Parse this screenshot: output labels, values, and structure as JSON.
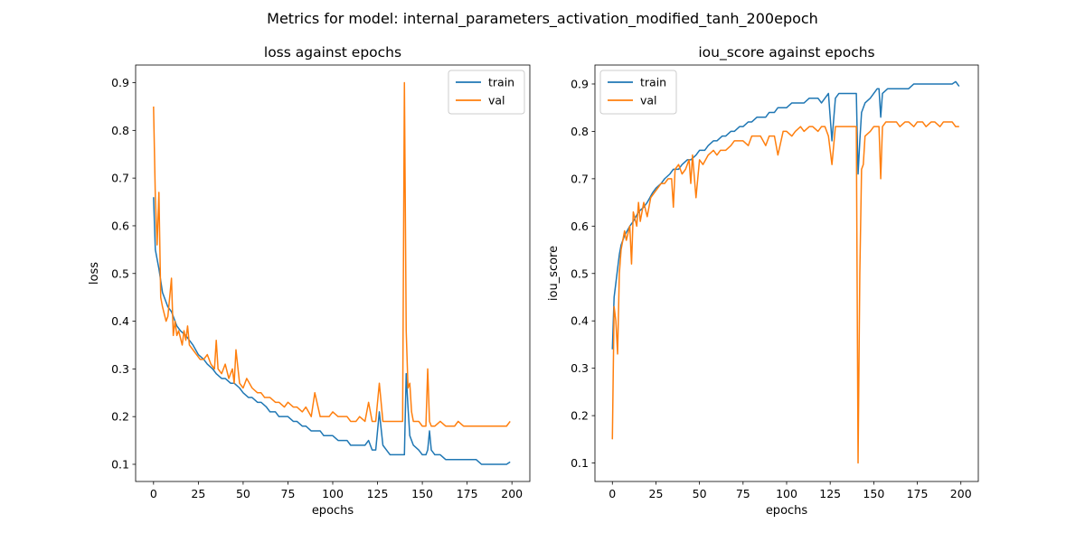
{
  "figure": {
    "suptitle": "Metrics for model: internal_parameters_activation_modified_tanh_200epoch"
  },
  "colors": {
    "train": "#1f77b4",
    "val": "#ff7f0e"
  },
  "chart_data": [
    {
      "type": "line",
      "title": "loss against epochs",
      "xlabel": "epochs",
      "ylabel": "loss",
      "xlim": [
        -10,
        210
      ],
      "ylim": [
        0.064,
        0.937
      ],
      "xticks": [
        0,
        25,
        50,
        75,
        100,
        125,
        150,
        175,
        200
      ],
      "yticks": [
        0.1,
        0.2,
        0.3,
        0.4,
        0.5,
        0.6,
        0.7,
        0.8,
        0.9
      ],
      "legend": "top-right",
      "grid": false,
      "series": [
        {
          "name": "train",
          "x": [
            0,
            1,
            3,
            5,
            8,
            10,
            13,
            15,
            18,
            20,
            22,
            25,
            28,
            30,
            33,
            35,
            38,
            40,
            43,
            45,
            48,
            50,
            53,
            55,
            58,
            60,
            63,
            65,
            68,
            70,
            73,
            75,
            78,
            80,
            83,
            85,
            88,
            90,
            93,
            95,
            98,
            100,
            103,
            105,
            108,
            110,
            113,
            115,
            118,
            120,
            122,
            124,
            126,
            128,
            130,
            132,
            134,
            136,
            138,
            139,
            140,
            141,
            142,
            143,
            145,
            148,
            150,
            152,
            153,
            154,
            155,
            157,
            160,
            163,
            165,
            168,
            170,
            173,
            175,
            178,
            180,
            183,
            185,
            188,
            190,
            193,
            195,
            197,
            199
          ],
          "values": [
            0.66,
            0.55,
            0.51,
            0.46,
            0.43,
            0.42,
            0.39,
            0.38,
            0.37,
            0.36,
            0.35,
            0.33,
            0.32,
            0.31,
            0.3,
            0.29,
            0.28,
            0.28,
            0.27,
            0.27,
            0.26,
            0.25,
            0.24,
            0.24,
            0.23,
            0.23,
            0.22,
            0.21,
            0.21,
            0.2,
            0.2,
            0.2,
            0.19,
            0.19,
            0.18,
            0.18,
            0.17,
            0.17,
            0.17,
            0.16,
            0.16,
            0.16,
            0.15,
            0.15,
            0.15,
            0.14,
            0.14,
            0.14,
            0.14,
            0.15,
            0.13,
            0.13,
            0.21,
            0.14,
            0.13,
            0.12,
            0.12,
            0.12,
            0.12,
            0.12,
            0.12,
            0.29,
            0.22,
            0.16,
            0.14,
            0.13,
            0.12,
            0.12,
            0.13,
            0.17,
            0.13,
            0.12,
            0.12,
            0.11,
            0.11,
            0.11,
            0.11,
            0.11,
            0.11,
            0.11,
            0.11,
            0.1,
            0.1,
            0.1,
            0.1,
            0.1,
            0.1,
            0.1,
            0.105
          ]
        },
        {
          "name": "val",
          "x": [
            0,
            1,
            2,
            3,
            4,
            5,
            7,
            8,
            10,
            11,
            12,
            13,
            14,
            16,
            17,
            18,
            19,
            20,
            22,
            24,
            26,
            28,
            30,
            32,
            34,
            35,
            36,
            38,
            40,
            42,
            44,
            45,
            46,
            48,
            50,
            52,
            55,
            58,
            60,
            62,
            65,
            68,
            70,
            73,
            75,
            78,
            80,
            83,
            85,
            88,
            90,
            93,
            95,
            98,
            100,
            103,
            105,
            108,
            110,
            113,
            115,
            118,
            120,
            122,
            124,
            126,
            128,
            130,
            132,
            134,
            136,
            138,
            139,
            140,
            141,
            142,
            143,
            144,
            145,
            148,
            150,
            152,
            153,
            154,
            155,
            157,
            160,
            163,
            165,
            168,
            170,
            173,
            175,
            178,
            180,
            183,
            185,
            188,
            190,
            193,
            195,
            197,
            199
          ],
          "values": [
            0.85,
            0.66,
            0.56,
            0.67,
            0.45,
            0.43,
            0.4,
            0.41,
            0.49,
            0.37,
            0.4,
            0.37,
            0.38,
            0.35,
            0.38,
            0.36,
            0.39,
            0.35,
            0.34,
            0.33,
            0.32,
            0.32,
            0.33,
            0.31,
            0.3,
            0.36,
            0.3,
            0.29,
            0.31,
            0.28,
            0.3,
            0.27,
            0.34,
            0.27,
            0.26,
            0.28,
            0.26,
            0.25,
            0.25,
            0.24,
            0.24,
            0.23,
            0.23,
            0.22,
            0.23,
            0.22,
            0.22,
            0.21,
            0.22,
            0.2,
            0.25,
            0.2,
            0.2,
            0.2,
            0.21,
            0.2,
            0.2,
            0.2,
            0.19,
            0.19,
            0.2,
            0.19,
            0.23,
            0.19,
            0.19,
            0.27,
            0.19,
            0.19,
            0.19,
            0.19,
            0.19,
            0.19,
            0.19,
            0.9,
            0.38,
            0.26,
            0.27,
            0.21,
            0.19,
            0.19,
            0.18,
            0.18,
            0.3,
            0.19,
            0.18,
            0.18,
            0.19,
            0.18,
            0.18,
            0.18,
            0.19,
            0.18,
            0.18,
            0.18,
            0.18,
            0.18,
            0.18,
            0.18,
            0.18,
            0.18,
            0.18,
            0.18,
            0.19
          ]
        }
      ]
    },
    {
      "type": "line",
      "title": "iou_score against epochs",
      "xlabel": "epochs",
      "ylabel": "iou_score",
      "xlim": [
        -10,
        210
      ],
      "ylim": [
        0.061,
        0.94
      ],
      "xticks": [
        0,
        25,
        50,
        75,
        100,
        125,
        150,
        175,
        200
      ],
      "yticks": [
        0.1,
        0.2,
        0.3,
        0.4,
        0.5,
        0.6,
        0.7,
        0.8,
        0.9
      ],
      "legend": "top-left",
      "grid": false,
      "series": [
        {
          "name": "train",
          "x": [
            0,
            1,
            2,
            3,
            4,
            5,
            7,
            10,
            12,
            15,
            18,
            20,
            23,
            25,
            28,
            30,
            33,
            35,
            38,
            40,
            43,
            45,
            48,
            50,
            53,
            55,
            58,
            60,
            63,
            65,
            68,
            70,
            73,
            75,
            78,
            80,
            83,
            85,
            88,
            90,
            93,
            95,
            98,
            100,
            103,
            105,
            108,
            110,
            113,
            115,
            118,
            120,
            122,
            124,
            126,
            128,
            130,
            132,
            134,
            136,
            138,
            139,
            140,
            141,
            142,
            143,
            145,
            148,
            150,
            152,
            153,
            154,
            155,
            158,
            160,
            163,
            165,
            168,
            170,
            173,
            175,
            178,
            180,
            183,
            185,
            188,
            190,
            193,
            195,
            197,
            199
          ],
          "values": [
            0.34,
            0.45,
            0.48,
            0.51,
            0.54,
            0.56,
            0.58,
            0.6,
            0.61,
            0.63,
            0.64,
            0.65,
            0.67,
            0.68,
            0.69,
            0.7,
            0.71,
            0.72,
            0.72,
            0.73,
            0.74,
            0.74,
            0.75,
            0.76,
            0.76,
            0.77,
            0.78,
            0.78,
            0.79,
            0.79,
            0.8,
            0.8,
            0.81,
            0.81,
            0.82,
            0.82,
            0.83,
            0.83,
            0.83,
            0.84,
            0.84,
            0.85,
            0.85,
            0.85,
            0.86,
            0.86,
            0.86,
            0.86,
            0.87,
            0.87,
            0.87,
            0.86,
            0.87,
            0.88,
            0.78,
            0.87,
            0.88,
            0.88,
            0.88,
            0.88,
            0.88,
            0.88,
            0.88,
            0.71,
            0.78,
            0.84,
            0.86,
            0.87,
            0.88,
            0.89,
            0.89,
            0.83,
            0.88,
            0.89,
            0.89,
            0.89,
            0.89,
            0.89,
            0.89,
            0.9,
            0.9,
            0.9,
            0.9,
            0.9,
            0.9,
            0.9,
            0.9,
            0.9,
            0.9,
            0.905,
            0.895
          ]
        },
        {
          "name": "val",
          "x": [
            0,
            1,
            2,
            3,
            4,
            5,
            7,
            8,
            10,
            11,
            12,
            14,
            15,
            16,
            18,
            20,
            22,
            24,
            26,
            28,
            30,
            32,
            34,
            35,
            36,
            38,
            40,
            42,
            44,
            45,
            46,
            48,
            50,
            52,
            55,
            58,
            60,
            62,
            65,
            68,
            70,
            73,
            75,
            78,
            80,
            83,
            85,
            88,
            90,
            93,
            95,
            98,
            100,
            103,
            105,
            108,
            110,
            113,
            115,
            118,
            120,
            122,
            124,
            126,
            128,
            130,
            132,
            134,
            136,
            138,
            139,
            140,
            141,
            142,
            143,
            144,
            145,
            148,
            150,
            152,
            153,
            154,
            155,
            157,
            160,
            163,
            165,
            168,
            170,
            173,
            175,
            178,
            180,
            183,
            185,
            188,
            190,
            193,
            195,
            197,
            199
          ],
          "values": [
            0.15,
            0.43,
            0.4,
            0.33,
            0.5,
            0.55,
            0.59,
            0.57,
            0.6,
            0.52,
            0.63,
            0.6,
            0.65,
            0.61,
            0.65,
            0.62,
            0.66,
            0.67,
            0.68,
            0.69,
            0.69,
            0.7,
            0.7,
            0.64,
            0.72,
            0.73,
            0.71,
            0.72,
            0.74,
            0.69,
            0.75,
            0.66,
            0.74,
            0.73,
            0.75,
            0.76,
            0.75,
            0.76,
            0.76,
            0.77,
            0.78,
            0.78,
            0.78,
            0.77,
            0.79,
            0.79,
            0.79,
            0.77,
            0.79,
            0.79,
            0.75,
            0.8,
            0.8,
            0.79,
            0.8,
            0.81,
            0.8,
            0.81,
            0.81,
            0.8,
            0.81,
            0.81,
            0.79,
            0.73,
            0.81,
            0.81,
            0.81,
            0.81,
            0.81,
            0.81,
            0.81,
            0.81,
            0.1,
            0.5,
            0.72,
            0.73,
            0.79,
            0.8,
            0.81,
            0.81,
            0.81,
            0.7,
            0.81,
            0.82,
            0.82,
            0.82,
            0.81,
            0.82,
            0.82,
            0.81,
            0.82,
            0.82,
            0.81,
            0.82,
            0.82,
            0.81,
            0.82,
            0.82,
            0.82,
            0.81,
            0.81
          ]
        }
      ]
    }
  ]
}
